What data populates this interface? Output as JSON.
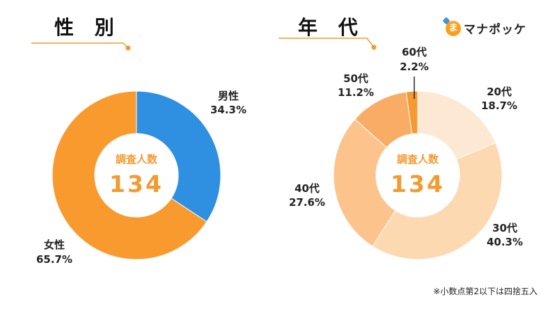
{
  "titles": {
    "gender": "性 別",
    "age": "年 代"
  },
  "logo": {
    "mark_char": "ま",
    "text": "マナポッケ"
  },
  "note": "※小数点第2以下は四捨五入",
  "colors": {
    "accent": "#f39a31",
    "line": "#f39a31"
  },
  "chart_data": [
    {
      "type": "pie",
      "title": "性 別",
      "center_label": "調査人数",
      "center_value": "134",
      "slices": [
        {
          "category": "男性",
          "value_label": "34.3%",
          "value": 34.3,
          "color": "#2f8fe0"
        },
        {
          "category": "女性",
          "value_label": "65.7%",
          "value": 65.7,
          "color": "#f99a2f"
        }
      ]
    },
    {
      "type": "pie",
      "title": "年 代",
      "center_label": "調査人数",
      "center_value": "134",
      "slices": [
        {
          "category": "20代",
          "value_label": "18.7%",
          "value": 18.7,
          "color": "#fde8d3"
        },
        {
          "category": "30代",
          "value_label": "40.3%",
          "value": 40.3,
          "color": "#fdd9b2"
        },
        {
          "category": "40代",
          "value_label": "27.6%",
          "value": 27.6,
          "color": "#fcc48c"
        },
        {
          "category": "50代",
          "value_label": "11.2%",
          "value": 11.2,
          "color": "#f9ac66"
        },
        {
          "category": "60代",
          "value_label": "2.2%",
          "value": 2.2,
          "color": "#f59a33"
        }
      ]
    }
  ]
}
